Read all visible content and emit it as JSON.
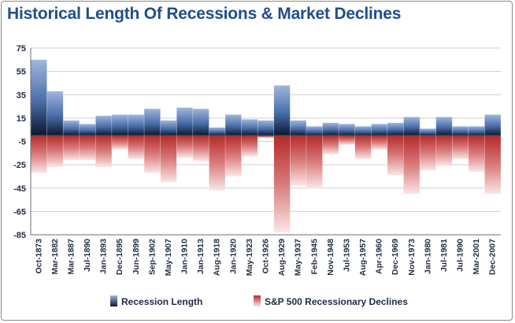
{
  "chart_data": {
    "type": "bar",
    "title": "Historical Length Of Recessions & Market Declines",
    "xlabel": "",
    "ylabel": "",
    "ylim": [
      -85,
      75
    ],
    "yticks": [
      75,
      55,
      35,
      15,
      -5,
      -25,
      -45,
      -65,
      -85
    ],
    "grid": true,
    "legend_position": "bottom",
    "categories": [
      "Oct-1873",
      "Mar-1882",
      "Mar-1887",
      "Jul-1890",
      "Jan-1893",
      "Dec-1895",
      "Jun-1899",
      "Sep-1902",
      "May-1907",
      "Jan-1910",
      "Jan-1913",
      "Aug-1918",
      "Jan-1920",
      "May-1923",
      "Oct-1926",
      "Aug-1929",
      "May-1937",
      "Feb-1945",
      "Nov-1948",
      "Jul-1953",
      "Aug-1957",
      "Apr-1960",
      "Dec-1969",
      "Nov-1973",
      "Jan-1980",
      "Jul-1981",
      "Jul-1990",
      "Mar-2001",
      "Dec-2007"
    ],
    "labeled_categories": [
      "Oct-1873",
      "Mar-1882",
      "Mar-1887",
      "Jul-1890",
      "Jan-1893",
      "Dec-1895",
      "Jun-1899",
      "Sep-1902",
      "May-1907",
      "Jan-1910",
      "Jan-1913",
      "Aug-1918",
      "Jan-1920",
      "May-1923",
      "Oct-1926",
      "Aug-1929",
      "May-1937",
      "Feb-1945",
      "Nov-1948",
      "Jul-1953",
      "Aug-1957",
      "Apr-1960",
      "Dec-1969",
      "Nov-1973",
      "Jan-1980",
      "Jul-1981",
      "Jul-1990",
      "Mar-2001",
      "Dec-2007"
    ],
    "series": [
      {
        "name": "Recession Length",
        "color": "#1f3f78",
        "values": [
          65,
          38,
          13,
          10,
          17,
          18,
          18,
          23,
          13,
          24,
          23,
          7,
          18,
          14,
          13,
          43,
          13,
          8,
          11,
          10,
          8,
          10,
          11,
          16,
          6,
          16,
          8,
          8,
          18
        ]
      },
      {
        "name": "S&P 500 Recessionary Declines",
        "color": "#c23a3a",
        "values": [
          -32,
          -27,
          -21,
          -21,
          -27,
          -12,
          -20,
          -32,
          -40,
          -19,
          -22,
          -47,
          -35,
          -18,
          -2,
          -83,
          -43,
          -45,
          -16,
          -8,
          -20,
          -12,
          -34,
          -50,
          -30,
          -26,
          -20,
          -31,
          -50
        ]
      }
    ]
  }
}
